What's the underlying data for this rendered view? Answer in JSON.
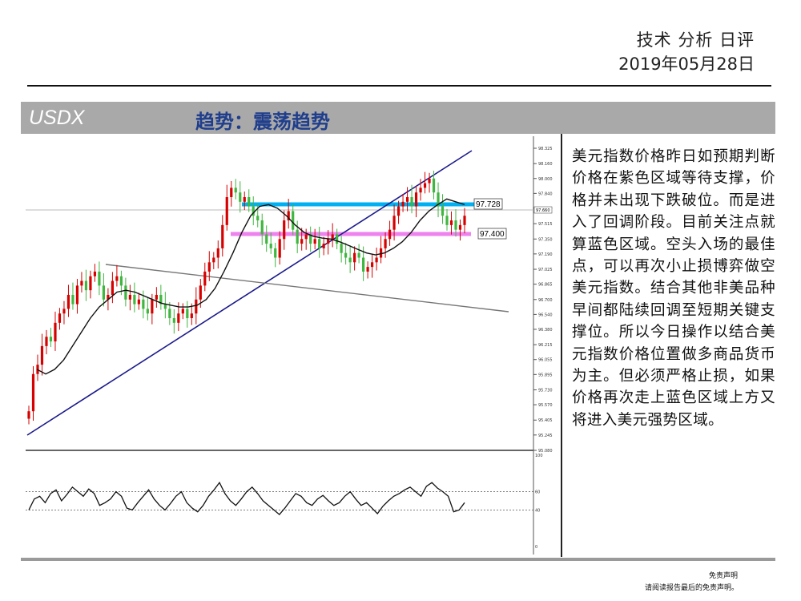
{
  "header": {
    "title": "技术 分析 日评",
    "date": "2019年05月28日"
  },
  "banner": {
    "symbol": "USDX",
    "trend": "趋势：震荡趋势"
  },
  "commentary": "美元指数价格昨日如预期判断价格在紫色区域等待支撑，价格并未出现下跌破位。而是进入了回调阶段。目前关注点就算蓝色区域。空头入场的最佳点，可以再次小止损博弈做空美元指数。结合其他非美品种早间都陆续回调至短期关键支撑位。所以今日操作以结合美元指数价格位置做多商品货币为主。但必须严格止损，如果价格再次走上蓝色区域上方又将进入美元强势区域。",
  "disclaimer": {
    "line1": "免责声明",
    "line2": "请阅读报告最后的免责声明。"
  },
  "colors": {
    "resistance_band": "#00b0f0",
    "support_band": "#ee82ee",
    "up_candle": "#d60000",
    "down_candle": "#3fb63f",
    "trendline": "#1a1a8c",
    "banner_bg": "#a9a9a9",
    "trend_text": "#1f3e8c"
  },
  "chart_data": {
    "type": "candlestick",
    "price_axis_ticks": [
      "98.325",
      "98.160",
      "98.000",
      "97.840",
      "97.680",
      "97.515",
      "97.350",
      "97.190",
      "97.025",
      "96.865",
      "96.700",
      "96.540",
      "96.380",
      "96.215",
      "96.055",
      "95.895",
      "95.730",
      "95.570",
      "95.405",
      "95.245",
      "95.080"
    ],
    "current_price": "97.660",
    "levels": [
      {
        "label": "97.728",
        "value": 97.728,
        "color": "cyan"
      },
      {
        "label": "97.400",
        "value": 97.4,
        "color": "violet"
      }
    ],
    "oscillator_ticks": [
      "100",
      "60",
      "40",
      "0"
    ],
    "oscillator_levels": [
      60,
      40
    ],
    "close_path": [
      95.5,
      95.9,
      96.0,
      96.2,
      96.3,
      96.25,
      96.45,
      96.55,
      96.6,
      96.75,
      96.65,
      96.85,
      96.9,
      96.8,
      96.95,
      97.0,
      96.85,
      96.7,
      96.75,
      96.9,
      96.95,
      96.85,
      96.7,
      96.75,
      96.65,
      96.7,
      96.6,
      96.55,
      96.7,
      96.75,
      96.65,
      96.6,
      96.5,
      96.45,
      96.55,
      96.6,
      96.5,
      96.55,
      96.7,
      96.85,
      97.0,
      97.1,
      97.15,
      97.25,
      97.5,
      97.8,
      97.9,
      97.85,
      97.75,
      97.8,
      97.7,
      97.6,
      97.55,
      97.4,
      97.3,
      97.25,
      97.15,
      97.35,
      97.55,
      97.65,
      97.45,
      97.3,
      97.35,
      97.4,
      97.3,
      97.35,
      97.25,
      97.3,
      97.35,
      97.4,
      97.3,
      97.2,
      97.15,
      97.1,
      97.2,
      97.15,
      97.0,
      97.05,
      97.1,
      97.15,
      97.25,
      97.35,
      97.45,
      97.6,
      97.7,
      97.75,
      97.8,
      97.7,
      97.85,
      97.9,
      97.95,
      98.0,
      97.85,
      97.7,
      97.6,
      97.5,
      97.55,
      97.45,
      97.5,
      97.6
    ],
    "ma_path": [
      95.95,
      95.9,
      95.95,
      96.05,
      96.2,
      96.35,
      96.5,
      96.62,
      96.7,
      96.78,
      96.8,
      96.78,
      96.74,
      96.7,
      96.66,
      96.64,
      96.62,
      96.62,
      96.64,
      96.7,
      96.82,
      97.0,
      97.2,
      97.42,
      97.6,
      97.7,
      97.72,
      97.68,
      97.6,
      97.5,
      97.42,
      97.38,
      97.36,
      97.35,
      97.32,
      97.28,
      97.24,
      97.2,
      97.18,
      97.2,
      97.25,
      97.32,
      97.42,
      97.55,
      97.65,
      97.72,
      97.78,
      97.75,
      97.72
    ],
    "oscillator_path": [
      40,
      52,
      55,
      48,
      58,
      62,
      50,
      57,
      65,
      60,
      55,
      63,
      58,
      45,
      48,
      52,
      60,
      55,
      42,
      40,
      48,
      55,
      62,
      52,
      45,
      40,
      47,
      55,
      60,
      48,
      42,
      38,
      45,
      55,
      62,
      70,
      58,
      50,
      45,
      52,
      60,
      65,
      58,
      50,
      45,
      40,
      35,
      42,
      50,
      58,
      55,
      48,
      45,
      52,
      56,
      50,
      45,
      48,
      55,
      60,
      52,
      45,
      48,
      42,
      36,
      44,
      50,
      55,
      58,
      62,
      65,
      60,
      55,
      66,
      70,
      64,
      60,
      55,
      38,
      40,
      48
    ]
  }
}
